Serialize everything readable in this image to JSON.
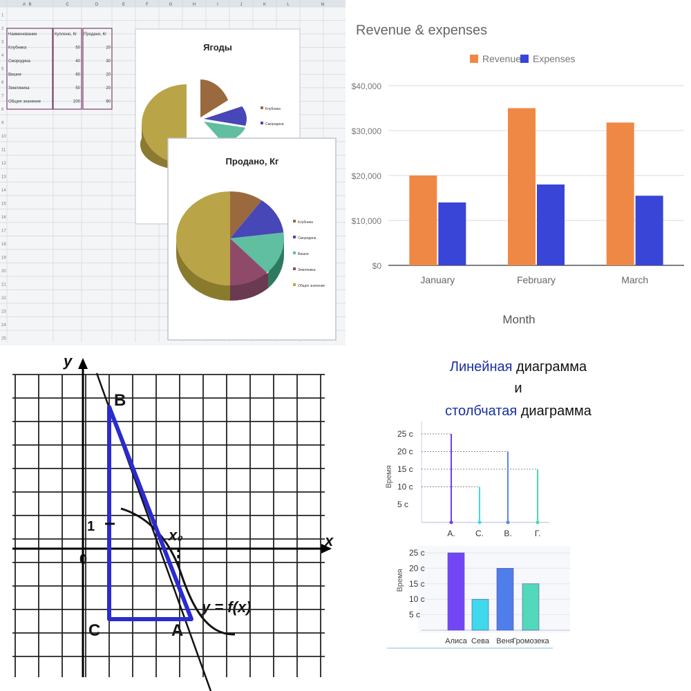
{
  "spreadsheet": {
    "columns": [
      "A",
      "B",
      "C",
      "D",
      "E",
      "F",
      "G",
      "H",
      "I",
      "J",
      "K",
      "L",
      "M"
    ],
    "table": {
      "headers": [
        "Наименование",
        "Куплено, Кг",
        "Продано, Кг"
      ],
      "rows": [
        [
          "Клубника",
          "50",
          "20"
        ],
        [
          "Смородина",
          "40",
          "30"
        ],
        [
          "Вишня",
          "60",
          "20"
        ],
        [
          "Земляника",
          "50",
          "20"
        ],
        [
          "Общее значение",
          "200",
          "90"
        ]
      ]
    },
    "chart1": {
      "title": "Ягоды",
      "legend": [
        "Клубника",
        "Смородина"
      ]
    },
    "chart2": {
      "title": "Продано, Кг",
      "legend": [
        "Клубника",
        "Смородина",
        "Вишня",
        "Земляника",
        "Общее значение"
      ],
      "colors": [
        "#9a6a3e",
        "#4747b8",
        "#5fbfa0",
        "#8f4a6a",
        "#b9a448"
      ]
    }
  },
  "chart_data": [
    {
      "type": "bar",
      "title": "Revenue & expenses",
      "xlabel": "Month",
      "categories": [
        "January",
        "February",
        "March"
      ],
      "series": [
        {
          "name": "Revenue",
          "values": [
            20000,
            35000,
            31800
          ],
          "color": "#f08845"
        },
        {
          "name": "Expenses",
          "values": [
            14000,
            18000,
            15500
          ],
          "color": "#3845d6"
        }
      ],
      "ylim": [
        0,
        40000
      ],
      "yticks": [
        "$0",
        "$10,000",
        "$20,000",
        "$30,000",
        "$40,000"
      ],
      "legend_position": "top"
    },
    {
      "type": "line",
      "ylabel": "Время",
      "categories": [
        "А.",
        "С.",
        "В.",
        "Г."
      ],
      "values": [
        25,
        10,
        20,
        15
      ],
      "yticks": [
        "5 с",
        "10 с",
        "15 с",
        "20 с",
        "25 с"
      ],
      "colors": [
        "#6b3ff0",
        "#3fd9e6",
        "#5a86e6",
        "#49d9b2"
      ]
    },
    {
      "type": "bar",
      "ylabel": "Время",
      "categories": [
        "Алиса",
        "Сева",
        "Веня",
        "Громозека"
      ],
      "values": [
        25,
        10,
        20,
        15
      ],
      "yticks": [
        "5 с",
        "10 с",
        "15 с",
        "20 с",
        "25 с"
      ],
      "colors": [
        "#7346f5",
        "#40d8ec",
        "#4f7de9",
        "#52d8ba"
      ]
    }
  ],
  "heading": {
    "line1_blue": "Линейная",
    "line1_rest": " диаграмма",
    "line2": "и",
    "line3_blue": "столбчатая",
    "line3_rest": " диаграмма"
  },
  "graph": {
    "axis_x": "x",
    "axis_y": "y",
    "origin": "0",
    "one": "1",
    "point_b": "B",
    "point_c": "C",
    "point_a": "A",
    "x0": "x₀",
    "function_label": "y = f(x)"
  }
}
